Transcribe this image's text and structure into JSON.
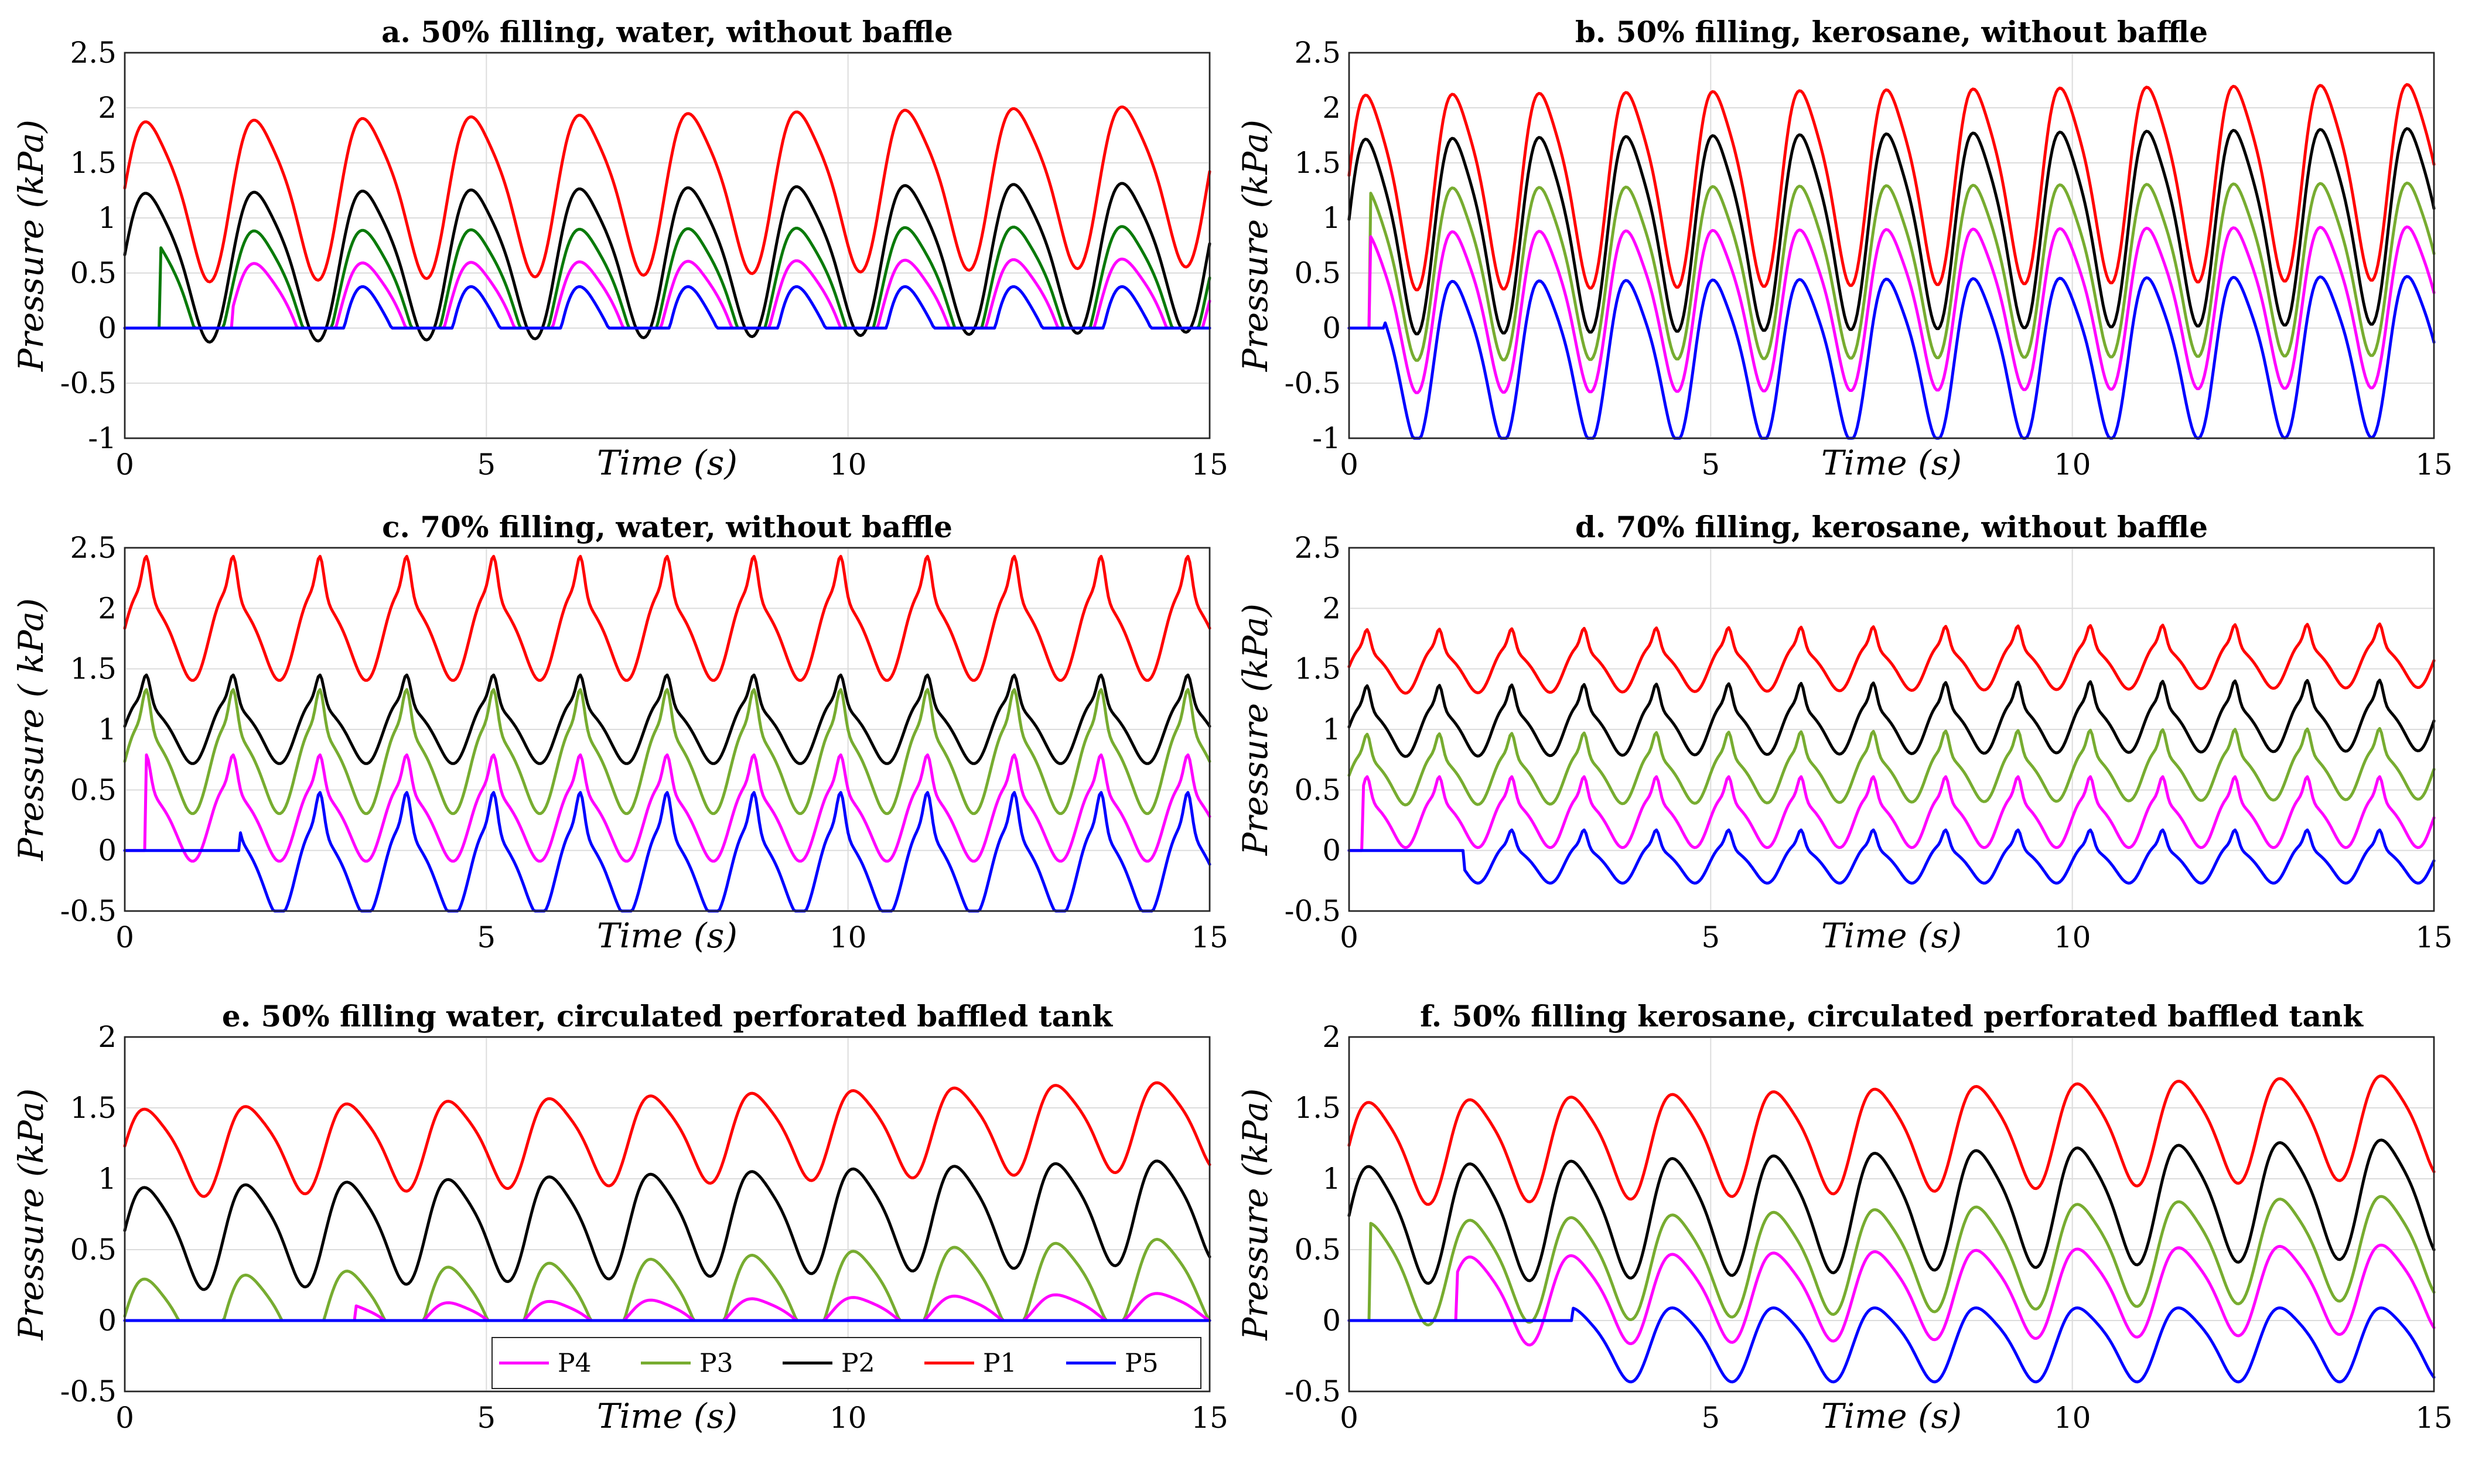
{
  "legend": {
    "items": [
      {
        "name": "P4",
        "color": "#ff00ff"
      },
      {
        "name": "P3",
        "color": "#77ac30"
      },
      {
        "name": "P2",
        "color": "#000000"
      },
      {
        "name": "P1",
        "color": "#ff0000"
      },
      {
        "name": "P5",
        "color": "#0000ff"
      }
    ]
  },
  "chart_data": [
    {
      "id": "a",
      "type": "line",
      "title": "a. 50% filling, water, without baffle",
      "xlabel": "Time (s)",
      "ylabel": "Pressure (kPa)",
      "xlim": [
        0,
        15
      ],
      "ylim": [
        -1,
        2.5
      ],
      "xticks": [
        0,
        5,
        10,
        15
      ],
      "yticks": [
        -1,
        -0.5,
        0,
        0.5,
        1,
        1.5,
        2,
        2.5
      ],
      "grid": true,
      "params": {
        "T": 1.5,
        "sl": 0,
        "startDelay": 1.5
      },
      "series": [
        {
          "name": "P1",
          "color": "#ff0000",
          "base": 1.2,
          "amp": 0.7,
          "rise": 0.15,
          "start": 0
        },
        {
          "name": "P2",
          "color": "#000000",
          "base": 0.6,
          "amp": 0.65,
          "rise": 0.1,
          "start": 0
        },
        {
          "name": "P3",
          "color": "#0a7a0a",
          "base": 0.35,
          "amp": 0.55,
          "rise": 0.05,
          "start": 0.5,
          "floor": 0
        },
        {
          "name": "P4",
          "color": "#ff00ff",
          "base": 0.15,
          "amp": 0.45,
          "rise": 0.05,
          "start": 1.5,
          "floor": 0
        },
        {
          "name": "P5",
          "color": "#0000ff",
          "base": -0.15,
          "amp": 0.55,
          "rise": 0,
          "start": 3.0,
          "floor": 0
        }
      ]
    },
    {
      "id": "b",
      "type": "line",
      "title": "b. 50% filling, kerosane, without baffle",
      "xlabel": "Time (s)",
      "ylabel": "Pressure (kPa)",
      "xlim": [
        0,
        15
      ],
      "ylim": [
        -1,
        2.5
      ],
      "xticks": [
        0,
        5,
        10,
        15
      ],
      "yticks": [
        -1,
        -0.5,
        0,
        0.5,
        1,
        1.5,
        2,
        2.5
      ],
      "grid": true,
      "params": {
        "T": 1.2,
        "sl": 0,
        "startDelay": 1.2
      },
      "series": [
        {
          "name": "P1",
          "color": "#ff0000",
          "base": 1.3,
          "amp": 0.85,
          "rise": 0.1,
          "start": 0
        },
        {
          "name": "P2",
          "color": "#000000",
          "base": 0.9,
          "amp": 0.85,
          "rise": 0.1,
          "start": 0
        },
        {
          "name": "P3",
          "color": "#77ac30",
          "base": 0.55,
          "amp": 0.75,
          "rise": 0.05,
          "start": 0.3
        },
        {
          "name": "P4",
          "color": "#ff00ff",
          "base": 0.2,
          "amp": 0.7,
          "rise": 0.05,
          "start": 0.3
        },
        {
          "name": "P5",
          "color": "#0000ff",
          "base": -0.25,
          "amp": 0.7,
          "rise": 0.05,
          "start": 0.5
        }
      ]
    },
    {
      "id": "c",
      "type": "line",
      "title": "c. 70% filling, water, without baffle",
      "xlabel": "Time (s)",
      "ylabel": "Pressure ( kPa)",
      "xlim": [
        0,
        15
      ],
      "ylim": [
        -0.5,
        2.5
      ],
      "xticks": [
        0,
        5,
        10,
        15
      ],
      "yticks": [
        -0.5,
        0,
        0.5,
        1,
        1.5,
        2,
        2.5
      ],
      "grid": true,
      "params": {
        "T": 1.2,
        "sl": 1,
        "startDelay": 1.5
      },
      "series": [
        {
          "name": "P1",
          "color": "#ff0000",
          "base": 1.8,
          "amp": 0.35,
          "rise": 0,
          "start": 0
        },
        {
          "name": "P2",
          "color": "#000000",
          "base": 1.0,
          "amp": 0.25,
          "rise": 0,
          "start": 0
        },
        {
          "name": "P3",
          "color": "#77ac30",
          "base": 0.7,
          "amp": 0.35,
          "rise": 0,
          "start": 0
        },
        {
          "name": "P4",
          "color": "#ff00ff",
          "base": 0.25,
          "amp": 0.3,
          "rise": 0,
          "start": 0.3
        },
        {
          "name": "P5",
          "color": "#0000ff",
          "base": -0.15,
          "amp": 0.35,
          "rise": 0,
          "start": 1.6
        }
      ]
    },
    {
      "id": "d",
      "type": "line",
      "title": "d. 70% filling, kerosane, without baffle",
      "xlabel": "Time (s)",
      "ylabel": "Pressure (kPa)",
      "xlim": [
        0,
        15
      ],
      "ylim": [
        -0.5,
        2.5
      ],
      "xticks": [
        0,
        5,
        10,
        15
      ],
      "yticks": [
        -0.5,
        0,
        0.5,
        1,
        1.5,
        2,
        2.5
      ],
      "grid": true,
      "params": {
        "T": 1.0,
        "sl": 1,
        "startDelay": 1.6
      },
      "series": [
        {
          "name": "P1",
          "color": "#ff0000",
          "base": 1.5,
          "amp": 0.18,
          "rise": 0.05,
          "start": 0
        },
        {
          "name": "P2",
          "color": "#000000",
          "base": 1.0,
          "amp": 0.2,
          "rise": 0.05,
          "start": 0
        },
        {
          "name": "P3",
          "color": "#77ac30",
          "base": 0.6,
          "amp": 0.2,
          "rise": 0.05,
          "start": 0
        },
        {
          "name": "P4",
          "color": "#ff00ff",
          "base": 0.25,
          "amp": 0.2,
          "rise": 0,
          "start": 0.2
        },
        {
          "name": "P5",
          "color": "#0000ff",
          "base": -0.1,
          "amp": 0.15,
          "rise": 0,
          "start": 1.6
        }
      ]
    },
    {
      "id": "e",
      "type": "line",
      "title": "e. 50% filling water, circulated perforated baffled tank",
      "xlabel": "Time (s)",
      "ylabel": "Pressure (kPa)",
      "xlim": [
        0,
        15
      ],
      "ylim": [
        -0.5,
        2
      ],
      "xticks": [
        0,
        5,
        10,
        15
      ],
      "yticks": [
        -0.5,
        0,
        0.5,
        1,
        1.5,
        2
      ],
      "grid": true,
      "legend": true,
      "params": {
        "T": 1.4,
        "sl": 0,
        "startDelay": 0
      },
      "series": [
        {
          "name": "P1",
          "color": "#ff0000",
          "base": 1.2,
          "amp": 0.3,
          "rise": 0.2,
          "start": 0
        },
        {
          "name": "P2",
          "color": "#000000",
          "base": 0.6,
          "amp": 0.35,
          "rise": 0.2,
          "start": 0
        },
        {
          "name": "P3",
          "color": "#77ac30",
          "base": 0.0,
          "amp": 0.3,
          "rise": 0.3,
          "start": 0,
          "floor": 0
        },
        {
          "name": "P4",
          "color": "#ff00ff",
          "base": 0.0,
          "amp": 0.1,
          "rise": 0.1,
          "start": 3.2,
          "floor": 0
        },
        {
          "name": "P5",
          "color": "#0000ff",
          "base": 0.0,
          "amp": 0,
          "rise": 0,
          "start": 0
        }
      ]
    },
    {
      "id": "f",
      "type": "line",
      "title": "f. 50% filling kerosane, circulated perforated baffled tank",
      "xlabel": "Time (s)",
      "ylabel": "Pressure (kPa)",
      "xlim": [
        0,
        15
      ],
      "ylim": [
        -0.5,
        2
      ],
      "xticks": [
        0,
        5,
        10,
        15
      ],
      "yticks": [
        -0.5,
        0,
        0.5,
        1,
        1.5,
        2
      ],
      "grid": true,
      "params": {
        "T": 1.4,
        "sl": 0,
        "startDelay": 1.4
      },
      "series": [
        {
          "name": "P1",
          "color": "#ff0000",
          "base": 1.2,
          "amp": 0.35,
          "rise": 0.2,
          "start": 0
        },
        {
          "name": "P2",
          "color": "#000000",
          "base": 0.7,
          "amp": 0.4,
          "rise": 0.2,
          "start": 0
        },
        {
          "name": "P3",
          "color": "#77ac30",
          "base": 0.35,
          "amp": 0.35,
          "rise": 0.2,
          "start": 0.3
        },
        {
          "name": "P4",
          "color": "#ff00ff",
          "base": 0.15,
          "amp": 0.3,
          "rise": 0.1,
          "start": 1.5
        },
        {
          "name": "P5",
          "color": "#0000ff",
          "base": -0.15,
          "amp": 0.25,
          "rise": 0,
          "start": 3.1
        }
      ]
    }
  ]
}
